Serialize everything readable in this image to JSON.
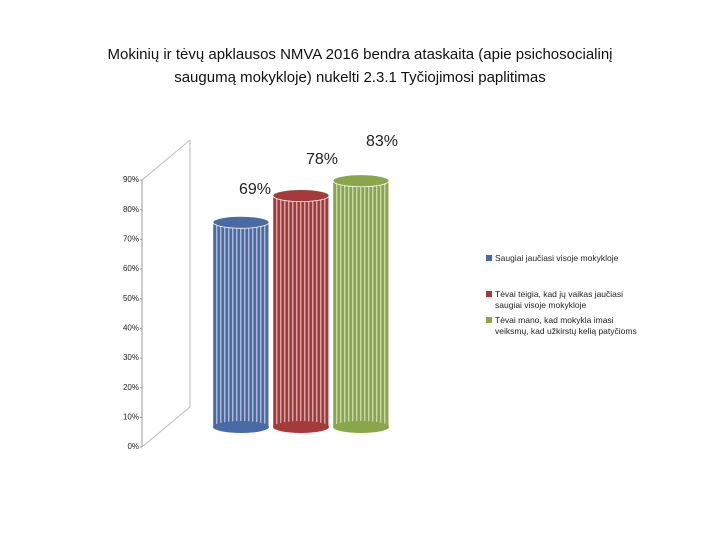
{
  "chart_data": {
    "type": "bar",
    "title": [
      "Mokinių  ir tėvų  apklausos  NMVA 2016 bendra ataskaita (apie psichosocialinį",
      "saugumą mokykloje) nukelti 2.3.1 Tyčiojimosi paplitimas"
    ],
    "series": [
      {
        "name": "Saugiai  jaučiasi visoje mokykloje",
        "color": "#4a6aa5",
        "values": [
          69
        ],
        "value_labels": [
          "69%"
        ]
      },
      {
        "name": "Tėvai teigia, kad jų vaikas jaučiasi saugiai visoje mokykloje",
        "color": "#a53a3a",
        "values": [
          78
        ],
        "value_labels": [
          "78%"
        ]
      },
      {
        "name": "Tėvai mano, kad  mokykla imasi veiksmų, kad užkirstų kelią patyčioms",
        "color": "#8aa64a",
        "values": [
          83
        ],
        "value_labels": [
          "83%"
        ]
      }
    ],
    "ylim": [
      0,
      90
    ],
    "yticks": [
      {
        "value": 0,
        "label": "0%"
      },
      {
        "value": 10,
        "label": "10%"
      },
      {
        "value": 20,
        "label": "20%"
      },
      {
        "value": 30,
        "label": "30%"
      },
      {
        "value": 40,
        "label": "40%"
      },
      {
        "value": 50,
        "label": "50%"
      },
      {
        "value": 60,
        "label": "60%"
      },
      {
        "value": 70,
        "label": "70%"
      },
      {
        "value": 80,
        "label": "80%"
      },
      {
        "value": 90,
        "label": "90%"
      }
    ],
    "legend": "right"
  }
}
